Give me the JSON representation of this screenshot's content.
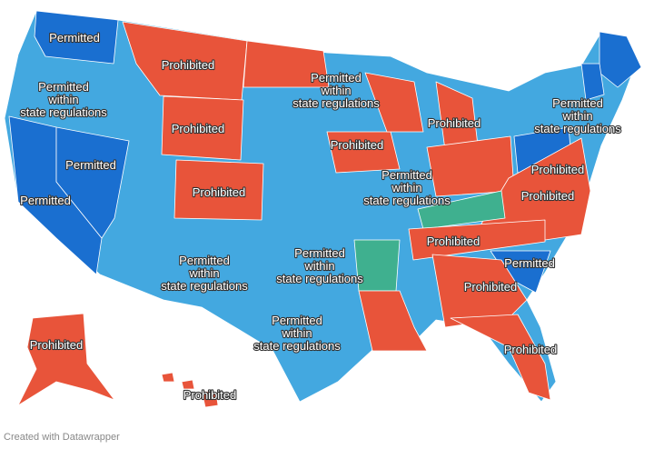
{
  "map": {
    "colors": [
      "#43a8e0",
      "#1a6fd0",
      "#e8543a",
      "#3fb08f"
    ],
    "labels": [
      {
        "lines": [
          "Permitted"
        ]
      },
      {
        "lines": [
          "Prohibited"
        ]
      },
      {
        "lines": [
          "Permitted",
          "within",
          "state regulations"
        ]
      },
      {
        "lines": [
          "Prohibited"
        ]
      },
      {
        "lines": [
          "Permitted",
          "within",
          "state regulations"
        ]
      },
      {
        "lines": [
          "Prohibited"
        ]
      },
      {
        "lines": [
          "Prohibited"
        ]
      },
      {
        "lines": [
          "Permitted",
          "within",
          "state regulations"
        ]
      },
      {
        "lines": [
          "Permitted"
        ]
      },
      {
        "lines": [
          "Permitted"
        ]
      },
      {
        "lines": [
          "Prohibited"
        ]
      },
      {
        "lines": [
          "Permitted",
          "within",
          "state regulations"
        ]
      },
      {
        "lines": [
          "Prohibited"
        ]
      },
      {
        "lines": [
          "Prohibited"
        ]
      },
      {
        "lines": [
          "Prohibited"
        ]
      },
      {
        "lines": [
          "Permitted"
        ]
      },
      {
        "lines": [
          "Permitted",
          "within",
          "state regulations"
        ]
      },
      {
        "lines": [
          "Permitted",
          "within",
          "state regulations"
        ]
      },
      {
        "lines": [
          "Prohibited"
        ]
      },
      {
        "lines": [
          "Permitted",
          "within",
          "state regulations"
        ]
      },
      {
        "lines": [
          "Prohibited"
        ]
      },
      {
        "lines": [
          "Prohibited"
        ]
      },
      {
        "lines": [
          "Prohibited"
        ]
      }
    ]
  },
  "credit": "Created with Datawrapper"
}
